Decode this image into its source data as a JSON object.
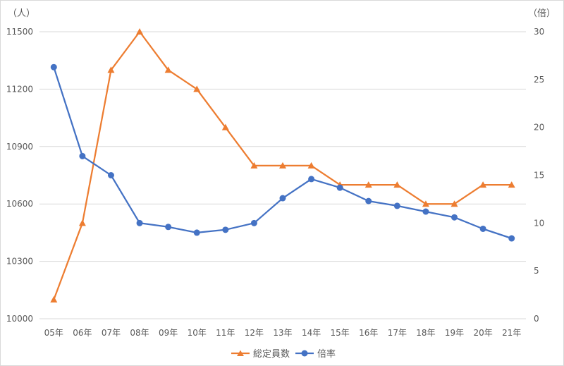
{
  "chart_data": {
    "type": "line",
    "categories": [
      "05年",
      "06年",
      "07年",
      "08年",
      "09年",
      "10年",
      "11年",
      "12年",
      "13年",
      "14年",
      "15年",
      "16年",
      "17年",
      "18年",
      "19年",
      "20年",
      "21年"
    ],
    "left_axis": {
      "unit": "（人）",
      "range": [
        10000,
        11500
      ],
      "ticks": [
        "10000",
        "10300",
        "10600",
        "10900",
        "11200",
        "11500"
      ]
    },
    "right_axis": {
      "unit": "（倍）",
      "range": [
        0,
        30
      ],
      "ticks": [
        "0",
        "5",
        "10",
        "15",
        "20",
        "25",
        "30"
      ]
    },
    "series": [
      {
        "name": "総定員数",
        "axis": "left",
        "color": "#ed7d31",
        "marker": "triangle",
        "values": [
          10100,
          10500,
          11300,
          11500,
          11300,
          11200,
          11000,
          10800,
          10800,
          10800,
          10700,
          10700,
          10700,
          10600,
          10600,
          10700,
          10700
        ]
      },
      {
        "name": "倍率",
        "axis": "right",
        "color": "#4472c4",
        "marker": "circle",
        "values": [
          26.3,
          17.0,
          15.0,
          10.0,
          9.6,
          9.0,
          9.3,
          10.0,
          12.6,
          14.6,
          13.7,
          12.3,
          11.8,
          11.2,
          10.6,
          9.4,
          8.4
        ]
      }
    ],
    "grid": true,
    "legend_position": "bottom"
  }
}
